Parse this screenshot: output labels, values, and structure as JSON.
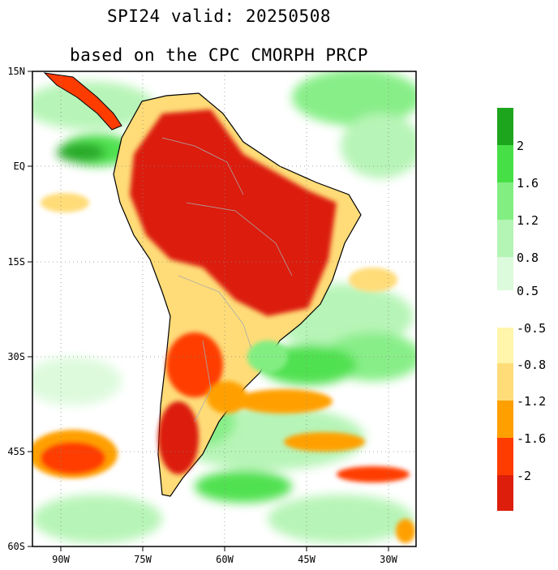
{
  "title_line1": "SPI24   valid: 20250508",
  "title_line2": "based on the CPC CMORPH PRCP",
  "y_axis_ticks": [
    "15N",
    "EQ",
    "15S",
    "30S",
    "45S",
    "60S"
  ],
  "x_axis_ticks": [
    "90W",
    "75W",
    "60W",
    "45W",
    "30W"
  ],
  "colorbar": {
    "wet": [
      {
        "color": "#1ea51e"
      },
      {
        "label": "2",
        "color": "#46e046"
      },
      {
        "label": "1.6",
        "color": "#82ee82"
      },
      {
        "label": "1.2",
        "color": "#b4f4b4"
      },
      {
        "label": "0.8",
        "color": "#dcfadc"
      },
      {
        "label": "0.5"
      }
    ],
    "dry": [
      {
        "label": "-0.5",
        "color": "#fff5ab"
      },
      {
        "label": "-0.8",
        "color": "#ffdc78"
      },
      {
        "label": "-1.2",
        "color": "#ffa000"
      },
      {
        "label": "-1.6",
        "color": "#ff3c00"
      },
      {
        "label": "-2",
        "color": "#dc1e0a"
      }
    ]
  }
}
